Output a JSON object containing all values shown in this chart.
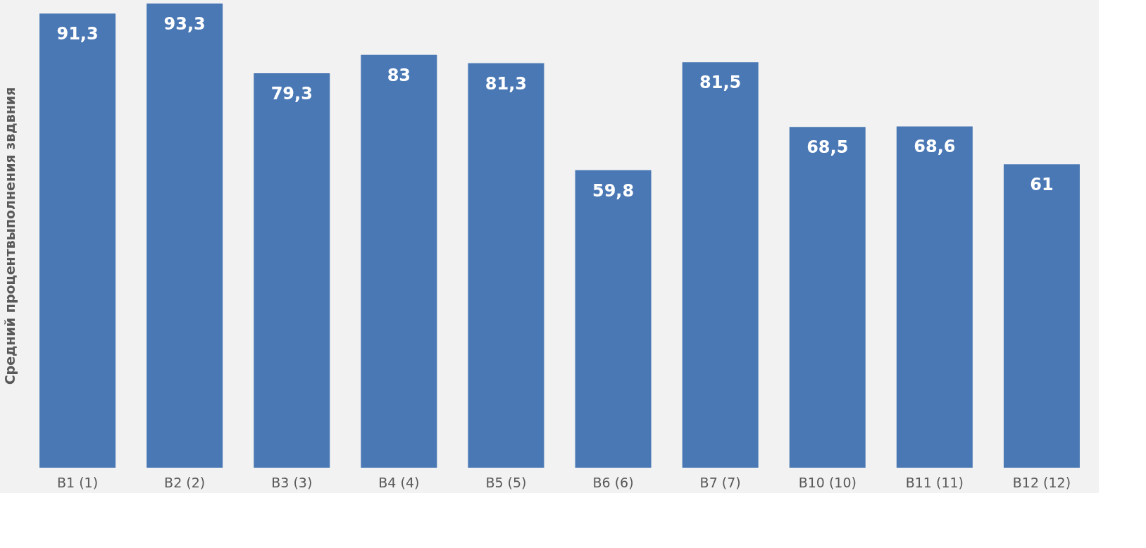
{
  "chart_data": {
    "type": "bar",
    "ylabel": "Средний процентвыполнения звдвния",
    "categories": [
      "В1 (1)",
      "В2 (2)",
      "В3 (3)",
      "В4 (4)",
      "В5 (5)",
      "В6 (6)",
      "В7 (7)",
      "В10 (10)",
      "В11 (11)",
      "В12 (12)"
    ],
    "values": [
      91.3,
      93.3,
      79.3,
      83,
      81.3,
      59.8,
      81.5,
      68.5,
      68.6,
      61
    ],
    "value_labels": [
      "91,3",
      "93,3",
      "79,3",
      "83",
      "81,3",
      "59,8",
      "81,5",
      "68,5",
      "68,6",
      "61"
    ],
    "color": "#4a78b5",
    "grid": false
  }
}
